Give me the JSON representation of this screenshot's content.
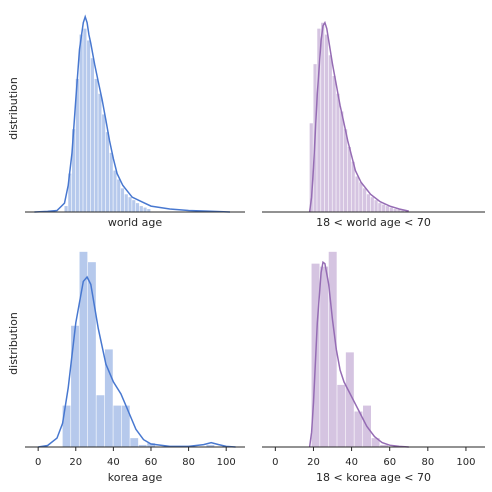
{
  "chart_data": [
    {
      "type": "histogram",
      "xlabel": "world age",
      "ylabel": "distribution",
      "color": "#4878d0",
      "xlim": [
        -7,
        110
      ],
      "ylim": [
        0,
        0.07
      ],
      "bins": [
        14,
        16,
        18,
        20,
        22,
        24,
        26,
        28,
        30,
        32,
        34,
        36,
        38,
        40,
        42,
        44,
        46,
        48,
        50,
        52,
        54,
        56,
        58,
        60
      ],
      "values": [
        0.002,
        0.013,
        0.028,
        0.045,
        0.06,
        0.062,
        0.058,
        0.052,
        0.045,
        0.04,
        0.033,
        0.027,
        0.02,
        0.014,
        0.011,
        0.008,
        0.006,
        0.005,
        0.004,
        0.003,
        0.002,
        0.0015,
        0.001
      ],
      "kde": {
        "x": [
          -2,
          5,
          10,
          14,
          16,
          18,
          20,
          22,
          24,
          25,
          26,
          27,
          28,
          30,
          32,
          34,
          36,
          38,
          40,
          42,
          45,
          50,
          55,
          60,
          70,
          80,
          90,
          102
        ],
        "values": [
          0,
          0.0002,
          0.0005,
          0.003,
          0.009,
          0.02,
          0.038,
          0.055,
          0.064,
          0.066,
          0.064,
          0.06,
          0.057,
          0.05,
          0.044,
          0.038,
          0.031,
          0.024,
          0.018,
          0.013,
          0.009,
          0.005,
          0.0035,
          0.002,
          0.001,
          0.0005,
          0.0003,
          0
        ]
      }
    },
    {
      "type": "histogram",
      "xlabel": "18 < world age < 70",
      "color": "#956cb4",
      "xlim": [
        -7,
        110
      ],
      "ylim": [
        0,
        0.07
      ],
      "bins": [
        18,
        20,
        22,
        24,
        26,
        28,
        30,
        32,
        34,
        36,
        38,
        40,
        42,
        44,
        46,
        48,
        50,
        52,
        54,
        56,
        58,
        60,
        62,
        64,
        66,
        68,
        70
      ],
      "values": [
        0.03,
        0.05,
        0.062,
        0.064,
        0.06,
        0.053,
        0.046,
        0.04,
        0.034,
        0.028,
        0.022,
        0.017,
        0.012,
        0.01,
        0.008,
        0.006,
        0.005,
        0.004,
        0.003,
        0.0025,
        0.002,
        0.0015,
        0.001,
        0.0008,
        0.0005,
        0.0003
      ],
      "kde": {
        "x": [
          18,
          19,
          20,
          22,
          24,
          25,
          26,
          27,
          28,
          30,
          32,
          34,
          36,
          38,
          40,
          42,
          45,
          50,
          55,
          60,
          65,
          70
        ],
        "values": [
          0,
          0.005,
          0.015,
          0.04,
          0.058,
          0.063,
          0.064,
          0.062,
          0.058,
          0.05,
          0.043,
          0.036,
          0.03,
          0.024,
          0.019,
          0.014,
          0.01,
          0.006,
          0.0035,
          0.002,
          0.001,
          0.0003
        ]
      }
    },
    {
      "type": "histogram",
      "xlabel": "korea age",
      "ylabel": "distribution",
      "color": "#4878d0",
      "xlim": [
        -7,
        110
      ],
      "ylim": [
        0,
        0.07
      ],
      "xticks": [
        0,
        20,
        40,
        60,
        80,
        100
      ],
      "bins": [
        13,
        17.5,
        22,
        26.5,
        31,
        35.5,
        40,
        44.5,
        49,
        53.5,
        58,
        62.5,
        67,
        71.5,
        76,
        80.5,
        85,
        89.5,
        94,
        98.5
      ],
      "values": [
        0.014,
        0.041,
        0.066,
        0.0625,
        0.0175,
        0.033,
        0.014,
        0.014,
        0.003,
        0.0007,
        0.0013,
        0,
        0,
        0,
        0,
        0,
        0,
        0.0007,
        0
      ],
      "kde": {
        "x": [
          0,
          5,
          10,
          13,
          16,
          20,
          24,
          26,
          28,
          32,
          36,
          40,
          44,
          48,
          52,
          56,
          60,
          70,
          80,
          88,
          92,
          96,
          100,
          105
        ],
        "values": [
          0,
          0.0005,
          0.003,
          0.008,
          0.02,
          0.042,
          0.056,
          0.0575,
          0.055,
          0.04,
          0.028,
          0.022,
          0.018,
          0.012,
          0.006,
          0.0025,
          0.001,
          0.0002,
          0.0002,
          0.0008,
          0.0015,
          0.0008,
          0.0002,
          0
        ]
      }
    },
    {
      "type": "histogram",
      "xlabel": "18 < korea age < 70",
      "color": "#956cb4",
      "xlim": [
        -7,
        110
      ],
      "ylim": [
        0,
        0.07
      ],
      "xticks": [
        0,
        20,
        40,
        60,
        80,
        100
      ],
      "bins": [
        19,
        23.5,
        28,
        32.5,
        37,
        41.5,
        46,
        50.5,
        55,
        59.5
      ],
      "values": [
        0.062,
        0.061,
        0.066,
        0.021,
        0.032,
        0.012,
        0.014,
        0.003,
        0.0007
      ],
      "kde": {
        "x": [
          18,
          19,
          20,
          22,
          24,
          25,
          26,
          28,
          30,
          32,
          34,
          36,
          40,
          44,
          48,
          52,
          56,
          60,
          65,
          70
        ],
        "values": [
          0,
          0.005,
          0.015,
          0.042,
          0.059,
          0.0625,
          0.062,
          0.055,
          0.043,
          0.033,
          0.026,
          0.022,
          0.017,
          0.012,
          0.007,
          0.0035,
          0.0015,
          0.0006,
          0.0002,
          0
        ]
      }
    }
  ]
}
